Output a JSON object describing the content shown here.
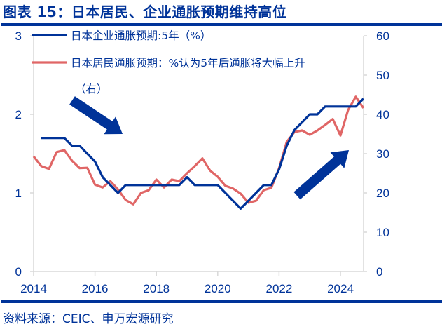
{
  "title": "图表 15：日本居民、企业通胀预期维持高位",
  "source": "资料来源：CEIC、申万宏源研究",
  "colors": {
    "brand": "#003399",
    "series_corporate": "#003399",
    "series_household": "#E06666",
    "axis": "#D9D9D9"
  },
  "legend": {
    "items": [
      {
        "label": "日本企业通胀预期:5年（%）",
        "color": "#003399"
      },
      {
        "label": "日本居民通胀预期：%认为5年后通胀将大幅上升",
        "color": "#E06666"
      }
    ],
    "continuation": "（右）"
  },
  "axes": {
    "x_ticks": [
      "2014",
      "2016",
      "2018",
      "2020",
      "2022",
      "2024"
    ],
    "y_left_ticks": [
      "0",
      "1",
      "2",
      "3"
    ],
    "y_right_ticks": [
      "0",
      "10",
      "20",
      "30",
      "40",
      "50",
      "60"
    ]
  },
  "annotations": [
    {
      "type": "arrow",
      "direction": "down-right",
      "color": "#003399"
    },
    {
      "type": "arrow",
      "direction": "up-right",
      "color": "#003399"
    }
  ],
  "chart_data": {
    "type": "line",
    "title": "日本居民、企业通胀预期维持高位",
    "xlabel": "",
    "ylabel": "",
    "xlim": [
      2014,
      2024.9
    ],
    "ylim_left": [
      0,
      3
    ],
    "ylim_right": [
      0,
      60
    ],
    "grid": false,
    "legend_position": "top-left",
    "series": [
      {
        "name": "日本企业通胀预期:5年（%）",
        "axis": "left",
        "x": [
          2014.25,
          2014.5,
          2014.75,
          2015.0,
          2015.25,
          2015.5,
          2015.75,
          2016.0,
          2016.25,
          2016.5,
          2016.75,
          2017.0,
          2017.25,
          2017.5,
          2017.75,
          2018.0,
          2018.25,
          2018.5,
          2018.75,
          2019.0,
          2019.25,
          2019.5,
          2019.75,
          2020.0,
          2020.25,
          2020.5,
          2020.75,
          2021.0,
          2021.25,
          2021.5,
          2021.75,
          2022.0,
          2022.25,
          2022.5,
          2022.75,
          2023.0,
          2023.25,
          2023.5,
          2023.75,
          2024.0,
          2024.25,
          2024.5,
          2024.75
        ],
        "values": [
          1.7,
          1.7,
          1.7,
          1.7,
          1.6,
          1.6,
          1.5,
          1.4,
          1.2,
          1.1,
          1.0,
          1.1,
          1.1,
          1.1,
          1.1,
          1.1,
          1.1,
          1.1,
          1.1,
          1.2,
          1.1,
          1.1,
          1.1,
          1.1,
          1.0,
          0.9,
          0.8,
          0.9,
          1.0,
          1.1,
          1.1,
          1.3,
          1.6,
          1.8,
          1.9,
          2.0,
          2.0,
          2.1,
          2.1,
          2.1,
          2.1,
          2.1,
          2.2
        ]
      },
      {
        "name": "日本居民通胀预期：%认为5年后通胀将大幅上升（右）",
        "axis": "right",
        "x": [
          2014.0,
          2014.25,
          2014.5,
          2014.75,
          2015.0,
          2015.25,
          2015.5,
          2015.75,
          2016.0,
          2016.25,
          2016.5,
          2016.75,
          2017.0,
          2017.25,
          2017.5,
          2017.75,
          2018.0,
          2018.25,
          2018.5,
          2018.75,
          2019.0,
          2019.25,
          2019.5,
          2019.75,
          2020.0,
          2020.25,
          2020.5,
          2020.75,
          2021.0,
          2021.25,
          2021.5,
          2021.75,
          2022.0,
          2022.25,
          2022.5,
          2022.75,
          2023.0,
          2023.25,
          2023.5,
          2023.75,
          2024.0,
          2024.25,
          2024.5,
          2024.75
        ],
        "values": [
          29.3,
          26.8,
          26.1,
          30.4,
          30.9,
          28.2,
          26.3,
          26.4,
          22.1,
          21.4,
          23.0,
          20.9,
          18.2,
          17.1,
          20.0,
          20.7,
          23.4,
          21.4,
          23.4,
          23.0,
          25.0,
          26.8,
          28.8,
          25.7,
          24.1,
          21.8,
          21.1,
          19.8,
          17.5,
          18.0,
          20.7,
          21.3,
          26.3,
          33.0,
          35.5,
          35.9,
          34.8,
          35.9,
          37.3,
          38.8,
          34.6,
          41.1,
          44.5,
          41.6
        ]
      }
    ]
  }
}
